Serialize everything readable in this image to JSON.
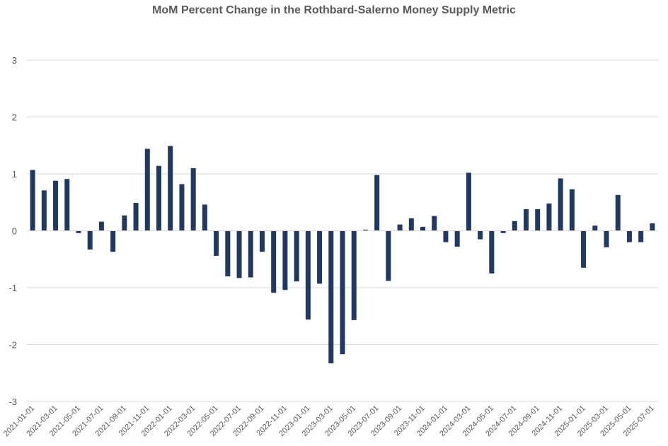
{
  "chart_data": {
    "type": "bar",
    "title": "MoM Percent Change in the Rothbard-Salerno Money Supply Metric",
    "xlabel": "",
    "ylabel": "",
    "ylim": [
      -3,
      3
    ],
    "yticks": [
      3,
      2,
      1,
      0,
      -1,
      -2,
      -3
    ],
    "grid": true,
    "legend": "none",
    "bar_color": "#1f3864",
    "grid_color": "#d9d9d9",
    "text_color": "#595959",
    "categories": [
      "2021-01-01",
      "2021-02-01",
      "2021-03-01",
      "2021-04-01",
      "2021-05-01",
      "2021-06-01",
      "2021-07-01",
      "2021-08-01",
      "2021-09-01",
      "2021-10-01",
      "2021-11-01",
      "2021-12-01",
      "2022-01-01",
      "2022-02-01",
      "2022-03-01",
      "2022-04-01",
      "2022-05-01",
      "2022-06-01",
      "2022-07-01",
      "2022-08-01",
      "2022-09-01",
      "2022-10-01",
      "2022-11-01",
      "2022-12-01",
      "2023-01-01",
      "2023-02-01",
      "2023-03-01",
      "2023-04-01",
      "2023-05-01",
      "2023-06-01",
      "2023-07-01",
      "2023-08-01",
      "2023-09-01",
      "2023-10-01",
      "2023-11-01",
      "2023-12-01",
      "2024-01-01",
      "2024-02-01",
      "2024-03-01",
      "2024-04-01",
      "2024-05-01",
      "2024-06-01",
      "2024-07-01",
      "2024-08-01",
      "2024-09-01",
      "2024-10-01",
      "2024-11-01",
      "2024-12-01",
      "2025-01-01",
      "2025-02-01",
      "2025-03-01",
      "2025-04-01",
      "2025-05-01",
      "2025-06-01",
      "2025-07-01"
    ],
    "tick_labels": [
      "2021-01-01",
      "2021-03-01",
      "2021-05-01",
      "2021-07-01",
      "2021-09-01",
      "2021-11-01",
      "2022-01-01",
      "2022-03-01",
      "2022-05-01",
      "2022-07-01",
      "2022-09-01",
      "2022-11-01",
      "2023-01-01",
      "2023-03-01",
      "2023-05-01",
      "2023-07-01",
      "2023-09-01",
      "2023-11-01",
      "2024-01-01",
      "2024-03-01",
      "2024-05-01",
      "2024-07-01",
      "2024-09-01",
      "2024-11-01",
      "2025-01-01",
      "2025-03-01",
      "2025-05-01",
      "2025-07-01"
    ],
    "values": [
      1.07,
      0.71,
      0.88,
      0.91,
      -0.04,
      -0.33,
      0.16,
      -0.37,
      0.27,
      0.49,
      1.44,
      1.14,
      1.49,
      0.82,
      1.1,
      0.46,
      -0.44,
      -0.8,
      -0.83,
      -0.82,
      -0.37,
      -1.09,
      -1.04,
      -0.89,
      -1.56,
      -0.93,
      -2.33,
      -2.17,
      -1.57,
      0.02,
      0.98,
      -0.88,
      0.11,
      0.22,
      0.07,
      0.26,
      -0.2,
      -0.28,
      1.02,
      -0.15,
      -0.75,
      -0.04,
      0.17,
      0.38,
      0.38,
      0.48,
      0.92,
      0.73,
      -0.65,
      0.09,
      -0.29,
      0.63,
      -0.2,
      -0.2,
      0.13
    ]
  }
}
